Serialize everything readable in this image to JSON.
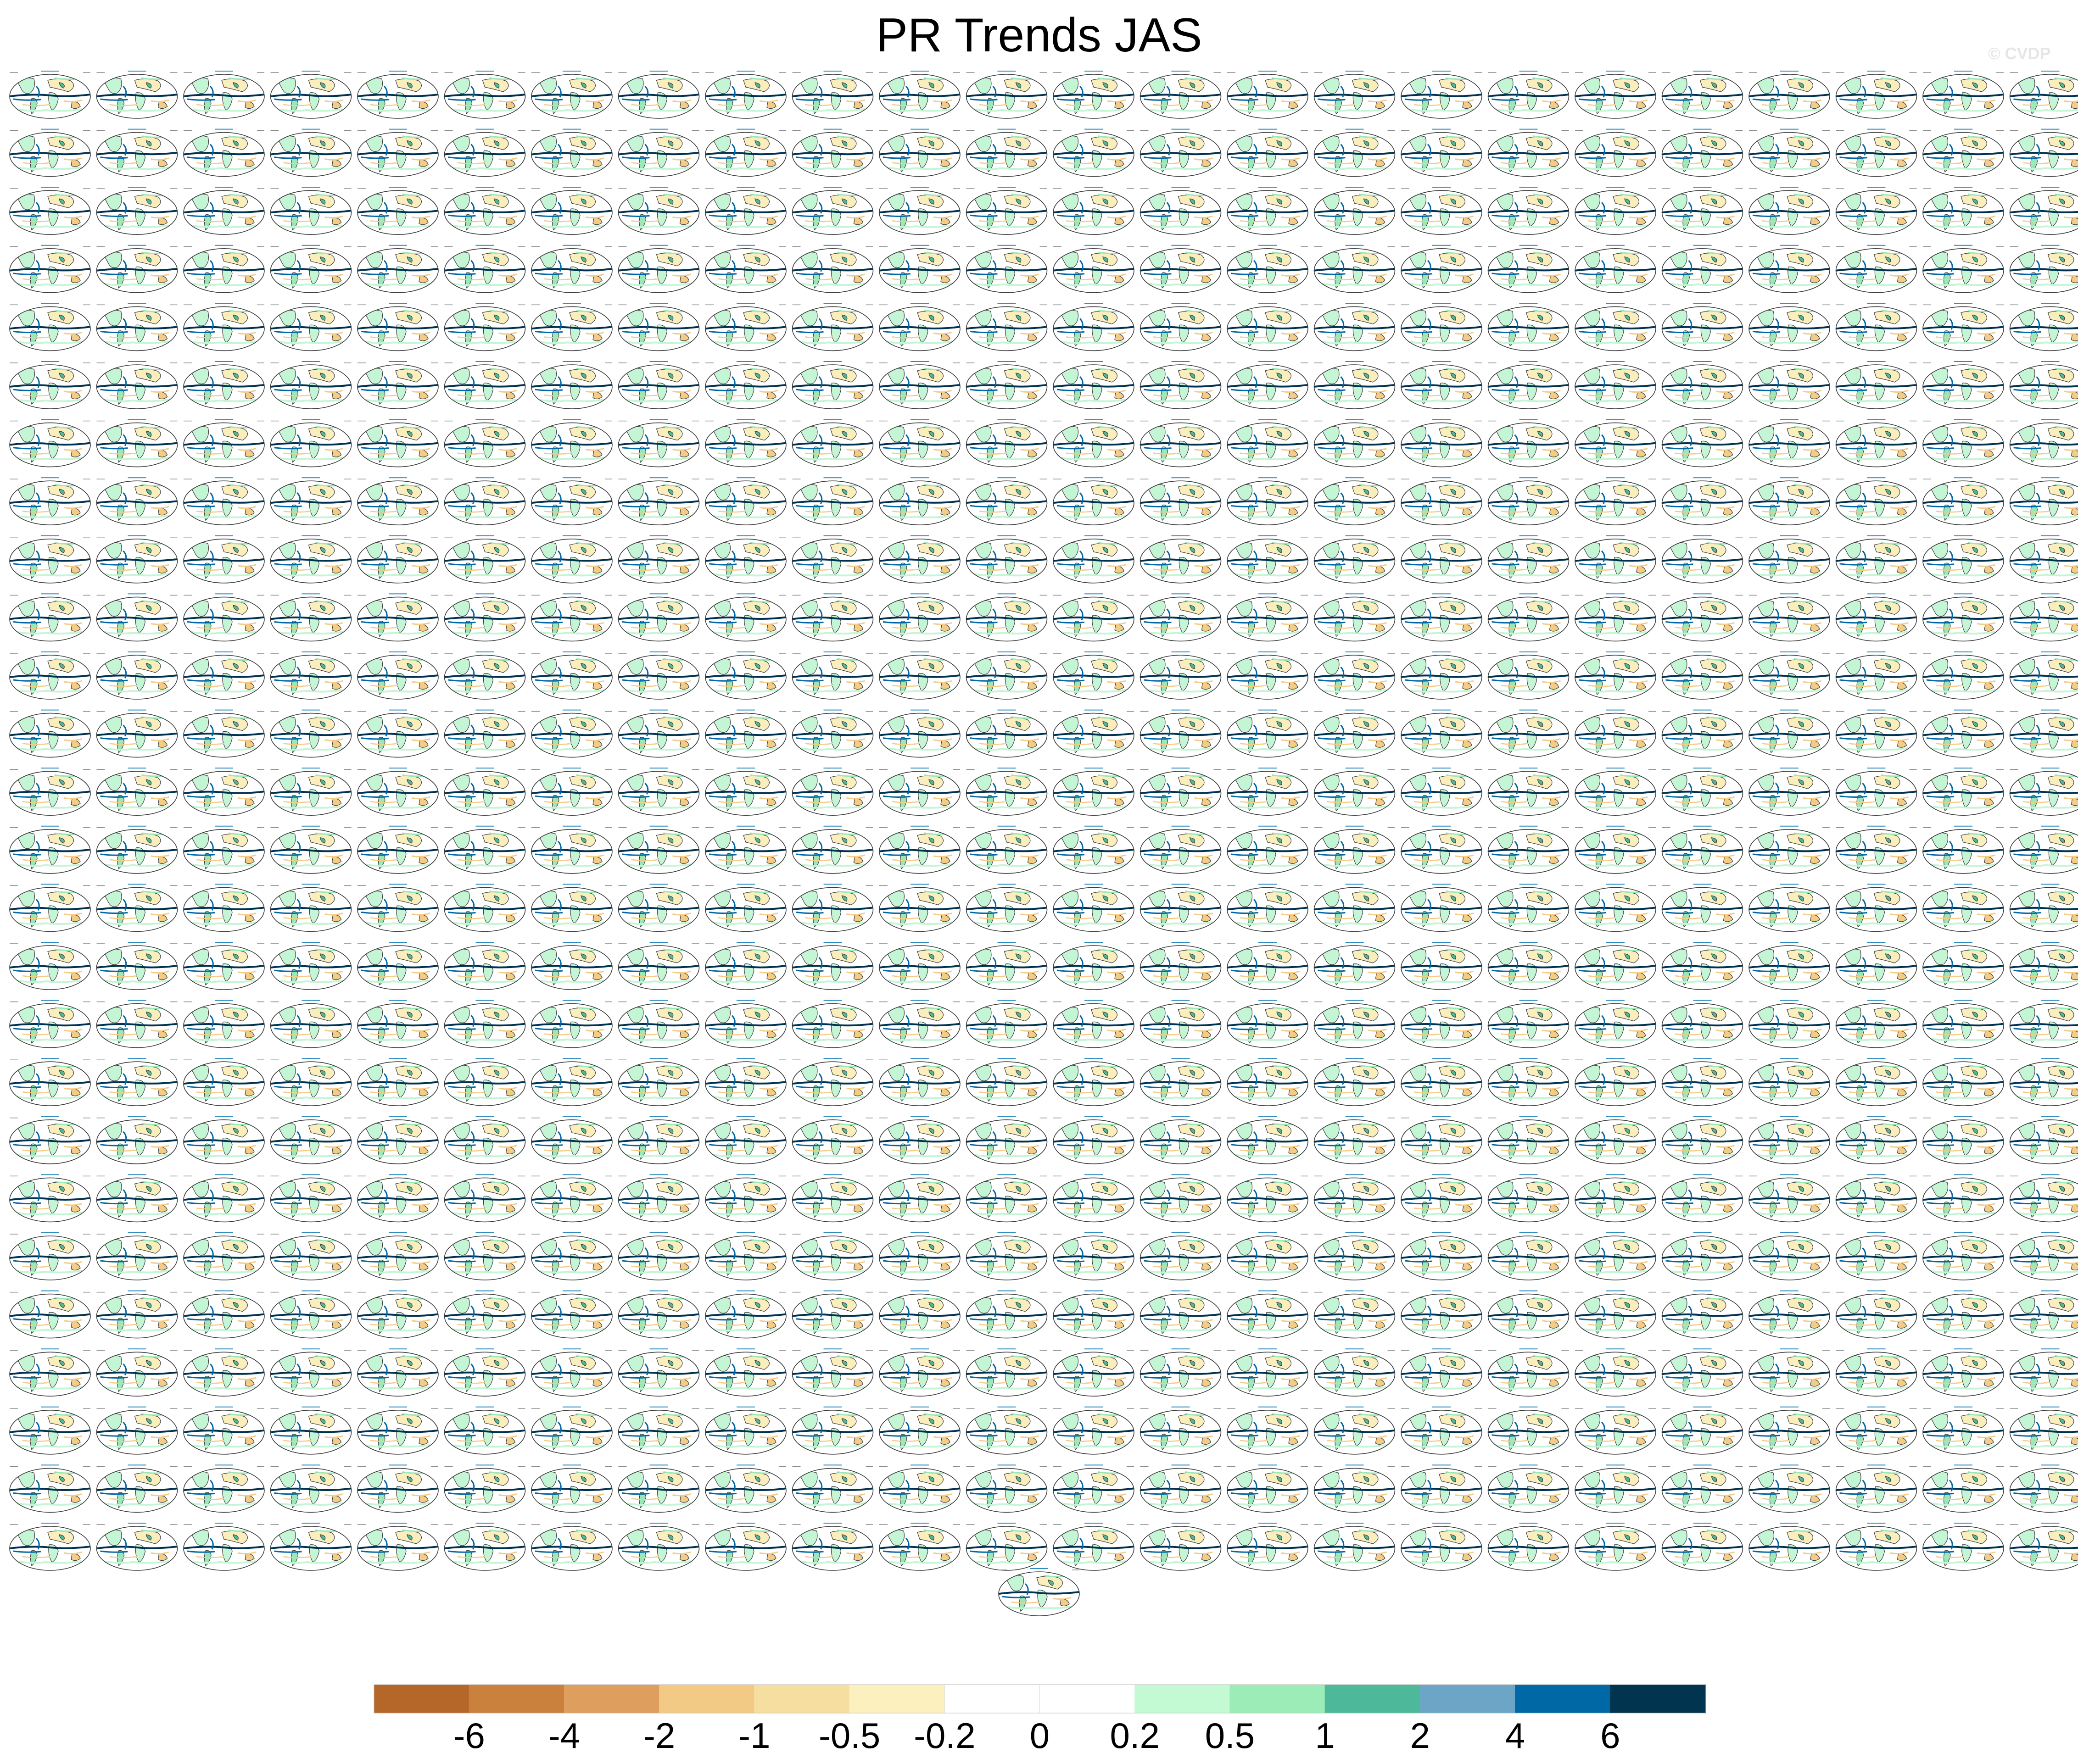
{
  "title": "PR Trends JAS",
  "watermark": "© CVDP",
  "grid": {
    "rows": 26,
    "cols": 24,
    "extra_panels": 1
  },
  "map_colors": {
    "land_outline": "#3a3a3a",
    "ocean_background": "#ffffff",
    "wet_light": "#c4f5d5",
    "wet_medium": "#98e8b8",
    "wet_strong": "#4dba9c",
    "wet_blue": "#0066a6",
    "wet_dark": "#00324f",
    "dry_light": "#fbeebd",
    "dry_medium": "#f4cc86",
    "panel_title": "#2e8bc0"
  },
  "colorbar": {
    "colors": [
      "#b5672a",
      "#cb813e",
      "#de9f5e",
      "#f2ca85",
      "#f6dea0",
      "#fcf1be",
      "#ffffff",
      "#ffffff",
      "#c4fad3",
      "#9cecb7",
      "#4db99a",
      "#6ca5c6",
      "#0069a5",
      "#00344f"
    ],
    "labels": [
      "-6",
      "-4",
      "-2",
      "-1",
      "-0.5",
      "-0.2",
      "0",
      "0.2",
      "0.5",
      "1",
      "2",
      "4",
      "6"
    ]
  }
}
